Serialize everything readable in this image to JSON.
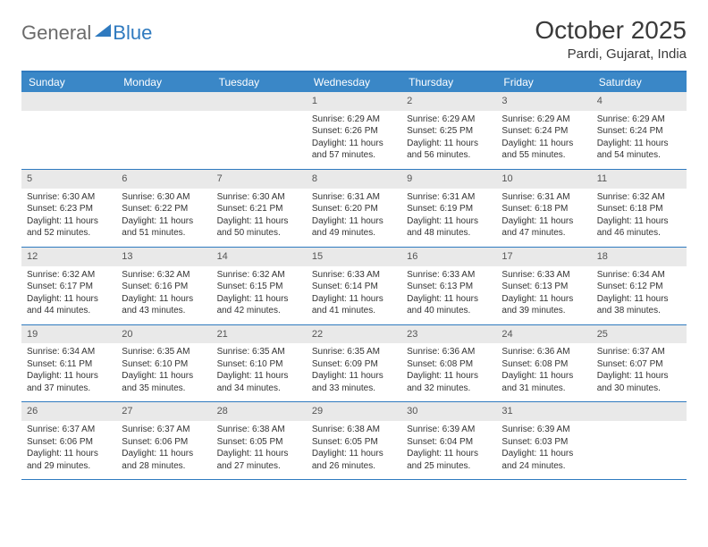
{
  "brand": {
    "part1": "General",
    "part2": "Blue"
  },
  "title": "October 2025",
  "location": "Pardi, Gujarat, India",
  "colors": {
    "header_bar": "#3a87c7",
    "accent": "#2f7abf",
    "daynum_bg": "#e9e9e9",
    "text": "#333333",
    "brand_gray": "#6b6b6b"
  },
  "weekdays": [
    "Sunday",
    "Monday",
    "Tuesday",
    "Wednesday",
    "Thursday",
    "Friday",
    "Saturday"
  ],
  "weeks": [
    [
      {
        "n": "",
        "sr": "",
        "ss": "",
        "dl": ""
      },
      {
        "n": "",
        "sr": "",
        "ss": "",
        "dl": ""
      },
      {
        "n": "",
        "sr": "",
        "ss": "",
        "dl": ""
      },
      {
        "n": "1",
        "sr": "Sunrise: 6:29 AM",
        "ss": "Sunset: 6:26 PM",
        "dl": "Daylight: 11 hours and 57 minutes."
      },
      {
        "n": "2",
        "sr": "Sunrise: 6:29 AM",
        "ss": "Sunset: 6:25 PM",
        "dl": "Daylight: 11 hours and 56 minutes."
      },
      {
        "n": "3",
        "sr": "Sunrise: 6:29 AM",
        "ss": "Sunset: 6:24 PM",
        "dl": "Daylight: 11 hours and 55 minutes."
      },
      {
        "n": "4",
        "sr": "Sunrise: 6:29 AM",
        "ss": "Sunset: 6:24 PM",
        "dl": "Daylight: 11 hours and 54 minutes."
      }
    ],
    [
      {
        "n": "5",
        "sr": "Sunrise: 6:30 AM",
        "ss": "Sunset: 6:23 PM",
        "dl": "Daylight: 11 hours and 52 minutes."
      },
      {
        "n": "6",
        "sr": "Sunrise: 6:30 AM",
        "ss": "Sunset: 6:22 PM",
        "dl": "Daylight: 11 hours and 51 minutes."
      },
      {
        "n": "7",
        "sr": "Sunrise: 6:30 AM",
        "ss": "Sunset: 6:21 PM",
        "dl": "Daylight: 11 hours and 50 minutes."
      },
      {
        "n": "8",
        "sr": "Sunrise: 6:31 AM",
        "ss": "Sunset: 6:20 PM",
        "dl": "Daylight: 11 hours and 49 minutes."
      },
      {
        "n": "9",
        "sr": "Sunrise: 6:31 AM",
        "ss": "Sunset: 6:19 PM",
        "dl": "Daylight: 11 hours and 48 minutes."
      },
      {
        "n": "10",
        "sr": "Sunrise: 6:31 AM",
        "ss": "Sunset: 6:18 PM",
        "dl": "Daylight: 11 hours and 47 minutes."
      },
      {
        "n": "11",
        "sr": "Sunrise: 6:32 AM",
        "ss": "Sunset: 6:18 PM",
        "dl": "Daylight: 11 hours and 46 minutes."
      }
    ],
    [
      {
        "n": "12",
        "sr": "Sunrise: 6:32 AM",
        "ss": "Sunset: 6:17 PM",
        "dl": "Daylight: 11 hours and 44 minutes."
      },
      {
        "n": "13",
        "sr": "Sunrise: 6:32 AM",
        "ss": "Sunset: 6:16 PM",
        "dl": "Daylight: 11 hours and 43 minutes."
      },
      {
        "n": "14",
        "sr": "Sunrise: 6:32 AM",
        "ss": "Sunset: 6:15 PM",
        "dl": "Daylight: 11 hours and 42 minutes."
      },
      {
        "n": "15",
        "sr": "Sunrise: 6:33 AM",
        "ss": "Sunset: 6:14 PM",
        "dl": "Daylight: 11 hours and 41 minutes."
      },
      {
        "n": "16",
        "sr": "Sunrise: 6:33 AM",
        "ss": "Sunset: 6:13 PM",
        "dl": "Daylight: 11 hours and 40 minutes."
      },
      {
        "n": "17",
        "sr": "Sunrise: 6:33 AM",
        "ss": "Sunset: 6:13 PM",
        "dl": "Daylight: 11 hours and 39 minutes."
      },
      {
        "n": "18",
        "sr": "Sunrise: 6:34 AM",
        "ss": "Sunset: 6:12 PM",
        "dl": "Daylight: 11 hours and 38 minutes."
      }
    ],
    [
      {
        "n": "19",
        "sr": "Sunrise: 6:34 AM",
        "ss": "Sunset: 6:11 PM",
        "dl": "Daylight: 11 hours and 37 minutes."
      },
      {
        "n": "20",
        "sr": "Sunrise: 6:35 AM",
        "ss": "Sunset: 6:10 PM",
        "dl": "Daylight: 11 hours and 35 minutes."
      },
      {
        "n": "21",
        "sr": "Sunrise: 6:35 AM",
        "ss": "Sunset: 6:10 PM",
        "dl": "Daylight: 11 hours and 34 minutes."
      },
      {
        "n": "22",
        "sr": "Sunrise: 6:35 AM",
        "ss": "Sunset: 6:09 PM",
        "dl": "Daylight: 11 hours and 33 minutes."
      },
      {
        "n": "23",
        "sr": "Sunrise: 6:36 AM",
        "ss": "Sunset: 6:08 PM",
        "dl": "Daylight: 11 hours and 32 minutes."
      },
      {
        "n": "24",
        "sr": "Sunrise: 6:36 AM",
        "ss": "Sunset: 6:08 PM",
        "dl": "Daylight: 11 hours and 31 minutes."
      },
      {
        "n": "25",
        "sr": "Sunrise: 6:37 AM",
        "ss": "Sunset: 6:07 PM",
        "dl": "Daylight: 11 hours and 30 minutes."
      }
    ],
    [
      {
        "n": "26",
        "sr": "Sunrise: 6:37 AM",
        "ss": "Sunset: 6:06 PM",
        "dl": "Daylight: 11 hours and 29 minutes."
      },
      {
        "n": "27",
        "sr": "Sunrise: 6:37 AM",
        "ss": "Sunset: 6:06 PM",
        "dl": "Daylight: 11 hours and 28 minutes."
      },
      {
        "n": "28",
        "sr": "Sunrise: 6:38 AM",
        "ss": "Sunset: 6:05 PM",
        "dl": "Daylight: 11 hours and 27 minutes."
      },
      {
        "n": "29",
        "sr": "Sunrise: 6:38 AM",
        "ss": "Sunset: 6:05 PM",
        "dl": "Daylight: 11 hours and 26 minutes."
      },
      {
        "n": "30",
        "sr": "Sunrise: 6:39 AM",
        "ss": "Sunset: 6:04 PM",
        "dl": "Daylight: 11 hours and 25 minutes."
      },
      {
        "n": "31",
        "sr": "Sunrise: 6:39 AM",
        "ss": "Sunset: 6:03 PM",
        "dl": "Daylight: 11 hours and 24 minutes."
      },
      {
        "n": "",
        "sr": "",
        "ss": "",
        "dl": ""
      }
    ]
  ]
}
